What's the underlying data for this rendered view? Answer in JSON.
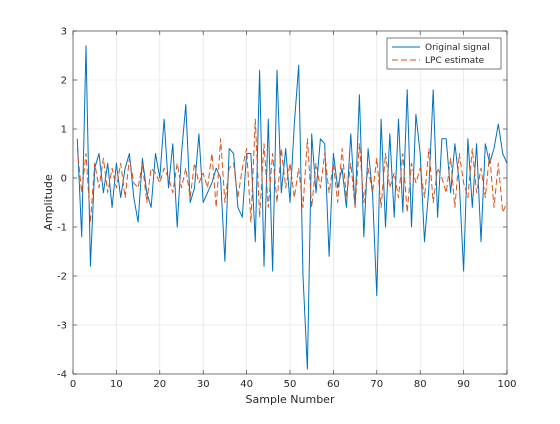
{
  "chart_data": {
    "type": "line",
    "xlabel": "Sample Number",
    "ylabel": "Amplitude",
    "xlim": [
      0,
      100
    ],
    "ylim": [
      -4,
      3
    ],
    "xticks": [
      "0",
      "10",
      "20",
      "30",
      "40",
      "50",
      "60",
      "70",
      "80",
      "90",
      "100"
    ],
    "yticks": [
      "-4",
      "-3",
      "-2",
      "-1",
      "0",
      "1",
      "2",
      "3"
    ],
    "grid": true,
    "legend_position": "top-right",
    "series": [
      {
        "name": "Original signal",
        "color": "#0072bd",
        "style": "solid",
        "x": [
          1,
          2,
          3,
          4,
          5,
          6,
          7,
          8,
          9,
          10,
          11,
          12,
          13,
          14,
          15,
          16,
          17,
          18,
          19,
          20,
          21,
          22,
          23,
          24,
          25,
          26,
          27,
          28,
          29,
          30,
          31,
          32,
          33,
          34,
          35,
          36,
          37,
          38,
          39,
          40,
          41,
          42,
          43,
          44,
          45,
          46,
          47,
          48,
          49,
          50,
          51,
          52,
          53,
          54,
          55,
          56,
          57,
          58,
          59,
          60,
          61,
          62,
          63,
          64,
          65,
          66,
          67,
          68,
          69,
          70,
          71,
          72,
          73,
          74,
          75,
          76,
          77,
          78,
          79,
          80,
          81,
          82,
          83,
          84,
          85,
          86,
          87,
          88,
          89,
          90,
          91,
          92,
          93,
          94,
          95,
          96,
          97,
          98,
          99,
          100
        ],
        "y": [
          0.8,
          -1.2,
          2.7,
          -1.8,
          0.2,
          0.5,
          -0.3,
          0.3,
          -0.6,
          0.3,
          -0.4,
          0.2,
          0.5,
          -0.4,
          -0.9,
          0.4,
          -0.3,
          -0.6,
          0.5,
          0.0,
          1.2,
          -0.2,
          0.7,
          -1.0,
          0.5,
          1.5,
          -0.5,
          -0.2,
          0.9,
          -0.5,
          -0.3,
          -0.1,
          0.2,
          0.0,
          -1.7,
          0.6,
          0.5,
          -0.6,
          -0.8,
          0.5,
          0.5,
          -1.3,
          2.2,
          -1.8,
          1.2,
          -1.9,
          2.2,
          -0.3,
          0.6,
          -0.5,
          1.1,
          2.3,
          -2.0,
          -3.9,
          0.9,
          -0.3,
          0.8,
          0.7,
          -1.6,
          0.5,
          -0.2,
          0.2,
          -0.6,
          0.9,
          -0.6,
          1.7,
          -1.2,
          0.6,
          -0.3,
          -2.4,
          1.2,
          -1.0,
          0.9,
          -0.8,
          1.2,
          -0.7,
          1.8,
          -1.0,
          1.3,
          0.5,
          -1.3,
          -0.2,
          1.8,
          -0.8,
          0.8,
          0.8,
          -0.3,
          0.7,
          -0.1,
          -1.9,
          0.8,
          -0.6,
          0.7,
          -1.3,
          0.7,
          0.3,
          0.6,
          1.1,
          0.5,
          0.3
        ]
      },
      {
        "name": "LPC estimate",
        "color": "#d95319",
        "style": "dashed",
        "x": [
          1,
          2,
          3,
          4,
          5,
          6,
          7,
          8,
          9,
          10,
          11,
          12,
          13,
          14,
          15,
          16,
          17,
          18,
          19,
          20,
          21,
          22,
          23,
          24,
          25,
          26,
          27,
          28,
          29,
          30,
          31,
          32,
          33,
          34,
          35,
          36,
          37,
          38,
          39,
          40,
          41,
          42,
          43,
          44,
          45,
          46,
          47,
          48,
          49,
          50,
          51,
          52,
          53,
          54,
          55,
          56,
          57,
          58,
          59,
          60,
          61,
          62,
          63,
          64,
          65,
          66,
          67,
          68,
          69,
          70,
          71,
          72,
          73,
          74,
          75,
          76,
          77,
          78,
          79,
          80,
          81,
          82,
          83,
          84,
          85,
          86,
          87,
          88,
          89,
          90,
          91,
          92,
          93,
          94,
          95,
          96,
          97,
          98,
          99,
          100
        ],
        "y": [
          0.6,
          -0.3,
          0.5,
          -0.9,
          0.3,
          -0.2,
          0.4,
          -0.3,
          0.2,
          -0.2,
          0.3,
          -0.4,
          0.4,
          -0.1,
          -0.2,
          0.3,
          -0.5,
          0.2,
          0.1,
          -0.1,
          0.2,
          0.0,
          -0.3,
          0.3,
          -0.2,
          0.2,
          -0.4,
          0.3,
          -0.1,
          0.1,
          -0.2,
          0.5,
          -0.6,
          0.8,
          -0.5,
          0.2,
          0.3,
          -0.4,
          0.2,
          0.6,
          -0.9,
          1.2,
          -0.8,
          0.7,
          -0.6,
          0.5,
          -0.5,
          0.6,
          -0.2,
          0.3,
          -0.4,
          0.2,
          -0.6,
          0.8,
          -0.6,
          0.3,
          -0.2,
          0.5,
          -0.3,
          0.3,
          -0.5,
          0.6,
          -0.4,
          0.3,
          -0.6,
          0.7,
          -0.5,
          0.2,
          -0.3,
          0.4,
          -0.6,
          0.5,
          -0.2,
          0.1,
          -0.4,
          0.5,
          -0.7,
          0.3,
          -0.1,
          0.2,
          -0.4,
          0.6,
          -0.5,
          0.2,
          0.0,
          -0.3,
          0.4,
          -0.6,
          0.5,
          -0.1,
          -0.4,
          0.6,
          -0.3,
          0.2,
          -0.4,
          0.5,
          -0.6,
          0.3,
          -0.7,
          -0.5
        ]
      }
    ]
  }
}
